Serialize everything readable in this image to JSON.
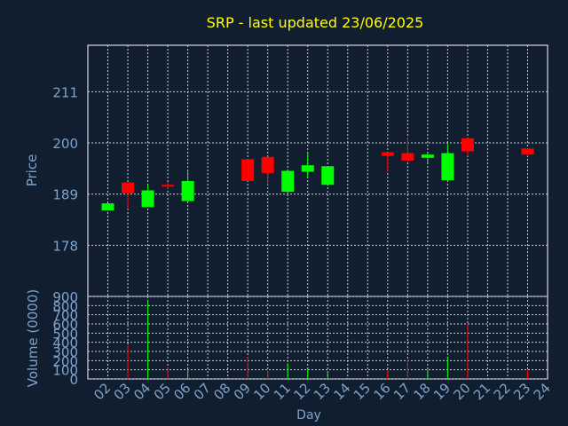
{
  "chart_data": [
    {
      "type": "candlestick",
      "title": "SRP - last updated 23/06/2025",
      "ylabel": "Price",
      "ylim": [
        167,
        221
      ],
      "yticks": [
        "211",
        "200",
        "189",
        "178"
      ],
      "x_categories": [
        "02",
        "03",
        "04",
        "05",
        "06",
        "07",
        "08",
        "09",
        "10",
        "11",
        "12",
        "13",
        "14",
        "15",
        "16",
        "17",
        "18",
        "19",
        "20",
        "21",
        "22",
        "23",
        "24"
      ],
      "grid": true,
      "series": [
        {
          "day": "02",
          "open": 185.5,
          "close": 187.0,
          "high": 187.0,
          "low": 185.5,
          "color": "green"
        },
        {
          "day": "03",
          "open": 191.5,
          "close": 189.2,
          "high": 191.5,
          "low": 185.8,
          "color": "red"
        },
        {
          "day": "04",
          "open": 186.2,
          "close": 189.8,
          "high": 191.0,
          "low": 186.2,
          "color": "green"
        },
        {
          "day": "05",
          "open": 191.0,
          "close": 190.8,
          "high": 191.6,
          "low": 190.2,
          "color": "red"
        },
        {
          "day": "06",
          "open": 187.5,
          "close": 191.8,
          "high": 194.2,
          "low": 187.5,
          "color": "green"
        },
        {
          "day": "09",
          "open": 196.5,
          "close": 191.8,
          "high": 196.5,
          "low": 191.8,
          "color": "red"
        },
        {
          "day": "10",
          "open": 197.0,
          "close": 193.5,
          "high": 197.0,
          "low": 191.0,
          "color": "red"
        },
        {
          "day": "11",
          "open": 189.5,
          "close": 194.0,
          "high": 194.0,
          "low": 189.2,
          "color": "green"
        },
        {
          "day": "12",
          "open": 193.8,
          "close": 195.2,
          "high": 197.8,
          "low": 192.5,
          "color": "green"
        },
        {
          "day": "13",
          "open": 191.0,
          "close": 195.0,
          "high": 195.0,
          "low": 190.8,
          "color": "green"
        },
        {
          "day": "16",
          "open": 198.0,
          "close": 197.2,
          "high": 198.0,
          "low": 193.8,
          "color": "red"
        },
        {
          "day": "17",
          "open": 197.8,
          "close": 196.2,
          "high": 201.2,
          "low": 196.2,
          "color": "red"
        },
        {
          "day": "18",
          "open": 196.8,
          "close": 197.5,
          "high": 197.8,
          "low": 195.8,
          "color": "green"
        },
        {
          "day": "19",
          "open": 192.0,
          "close": 197.8,
          "high": 200.0,
          "low": 192.0,
          "color": "green"
        },
        {
          "day": "20",
          "open": 201.0,
          "close": 198.2,
          "high": 201.0,
          "low": 197.2,
          "color": "red"
        },
        {
          "day": "23",
          "open": 198.8,
          "close": 197.5,
          "high": 198.8,
          "low": 197.2,
          "color": "red"
        }
      ]
    },
    {
      "type": "bar",
      "ylabel": "Volume (0000)",
      "xlabel": "Day",
      "ylim": [
        0,
        900
      ],
      "yticks": [
        "900",
        "800",
        "700",
        "600",
        "500",
        "400",
        "300",
        "200",
        "100",
        "0"
      ],
      "x_categories": [
        "02",
        "03",
        "04",
        "05",
        "06",
        "07",
        "08",
        "09",
        "10",
        "11",
        "12",
        "13",
        "14",
        "15",
        "16",
        "17",
        "18",
        "19",
        "20",
        "21",
        "22",
        "23",
        "24"
      ],
      "grid": true,
      "series": [
        {
          "day": "03",
          "value": 370,
          "color": "red"
        },
        {
          "day": "04",
          "value": 850,
          "color": "green"
        },
        {
          "day": "05",
          "value": 130,
          "color": "red"
        },
        {
          "day": "06",
          "value": 100,
          "color": "green"
        },
        {
          "day": "09",
          "value": 240,
          "color": "red"
        },
        {
          "day": "10",
          "value": 90,
          "color": "red"
        },
        {
          "day": "11",
          "value": 170,
          "color": "green"
        },
        {
          "day": "12",
          "value": 110,
          "color": "green"
        },
        {
          "day": "13",
          "value": 80,
          "color": "green"
        },
        {
          "day": "16",
          "value": 90,
          "color": "red"
        },
        {
          "day": "17",
          "value": 210,
          "color": "red"
        },
        {
          "day": "18",
          "value": 100,
          "color": "green"
        },
        {
          "day": "19",
          "value": 240,
          "color": "green"
        },
        {
          "day": "20",
          "value": 600,
          "color": "red"
        },
        {
          "day": "23",
          "value": 100,
          "color": "red"
        }
      ]
    }
  ],
  "colors": {
    "background": "#111e2f",
    "panel": "#111e2f",
    "frame": "#ffffff",
    "grid": "#c8d0d8",
    "tick_text": "#7fa4cc",
    "title": "#ffff00",
    "up": "#00ff00",
    "down": "#ff0000"
  }
}
